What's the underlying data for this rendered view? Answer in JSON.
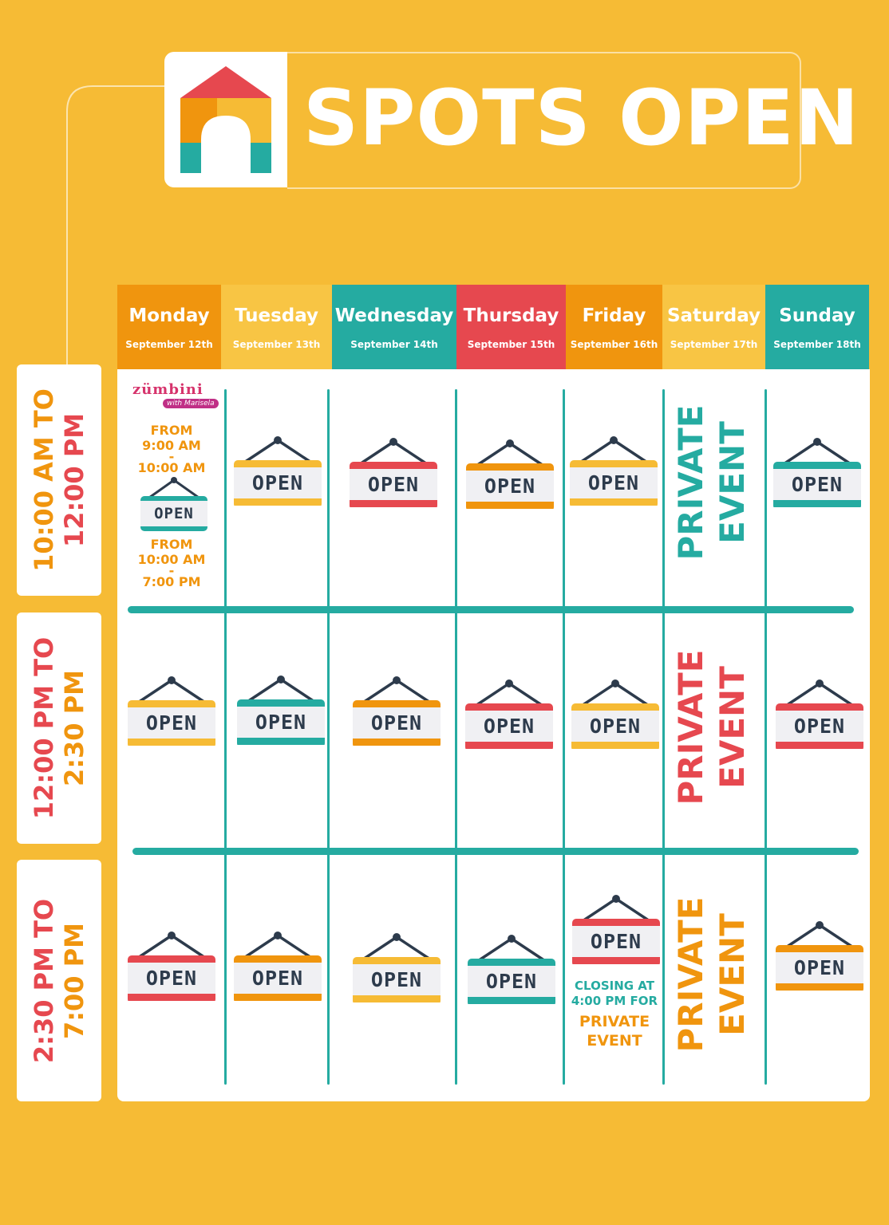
{
  "title": "SPOTS OPEN",
  "colors": {
    "background": "#f6bb35",
    "orange": "#f0950e",
    "yellow": "#f6bb35",
    "teal": "#25aba1",
    "red": "#e6484f",
    "pale_yellow": "#f8c544"
  },
  "days": [
    {
      "name": "Monday",
      "date": "September 12th",
      "color": "orange"
    },
    {
      "name": "Tuesday",
      "date": "September 13th",
      "color": "yellow"
    },
    {
      "name": "Wednesday",
      "date": "September 14th",
      "color": "teal"
    },
    {
      "name": "Thursday",
      "date": "September 15th",
      "color": "red"
    },
    {
      "name": "Friday",
      "date": "September 16th",
      "color": "orange"
    },
    {
      "name": "Saturday",
      "date": "September 17th",
      "color": "yellow"
    },
    {
      "name": "Sunday",
      "date": "September 18th",
      "color": "teal"
    }
  ],
  "time_slots": [
    {
      "line1": "10:00 AM TO",
      "line2": "12:00 PM",
      "color1": "#f0950e",
      "color2": "#e6484f"
    },
    {
      "line1": "12:00 PM TO",
      "line2": "2:30 PM",
      "color1": "#e6484f",
      "color2": "#f0950e"
    },
    {
      "line1": "2:30 PM TO",
      "line2": "7:00 PM",
      "color1": "#e6484f",
      "color2": "#f0950e"
    }
  ],
  "sign_text": "OPEN",
  "private_event": {
    "line1": "PRIVATE",
    "line2": "EVENT"
  },
  "signs": {
    "row1": [
      "#f6bb35",
      "#e6484f",
      "#f0950e",
      "#f6bb35",
      "#25aba1"
    ],
    "row2": [
      "#f6bb35",
      "#25aba1",
      "#f0950e",
      "#e6484f",
      "#f6bb35",
      "#e6484f"
    ],
    "row3": [
      "#e6484f",
      "#f0950e",
      "#f6bb35",
      "#25aba1",
      "#e6484f",
      "#f0950e"
    ],
    "monday_small": "#25aba1"
  },
  "private_colors": [
    "#25aba1",
    "#e6484f",
    "#f0950e"
  ],
  "monday_class": {
    "brand": "zümbini",
    "tagline": "with Marisela",
    "from_label": "FROM",
    "start": "9:00 AM",
    "dash": "-",
    "end": "10:00 AM"
  },
  "monday_open": {
    "from_label": "FROM",
    "start": "10:00 AM",
    "dash": "-",
    "end": "7:00 PM"
  },
  "friday_note": {
    "line1": "CLOSING AT",
    "line2": "4:00 PM FOR",
    "line3": "PRIVATE",
    "line4": "EVENT"
  }
}
